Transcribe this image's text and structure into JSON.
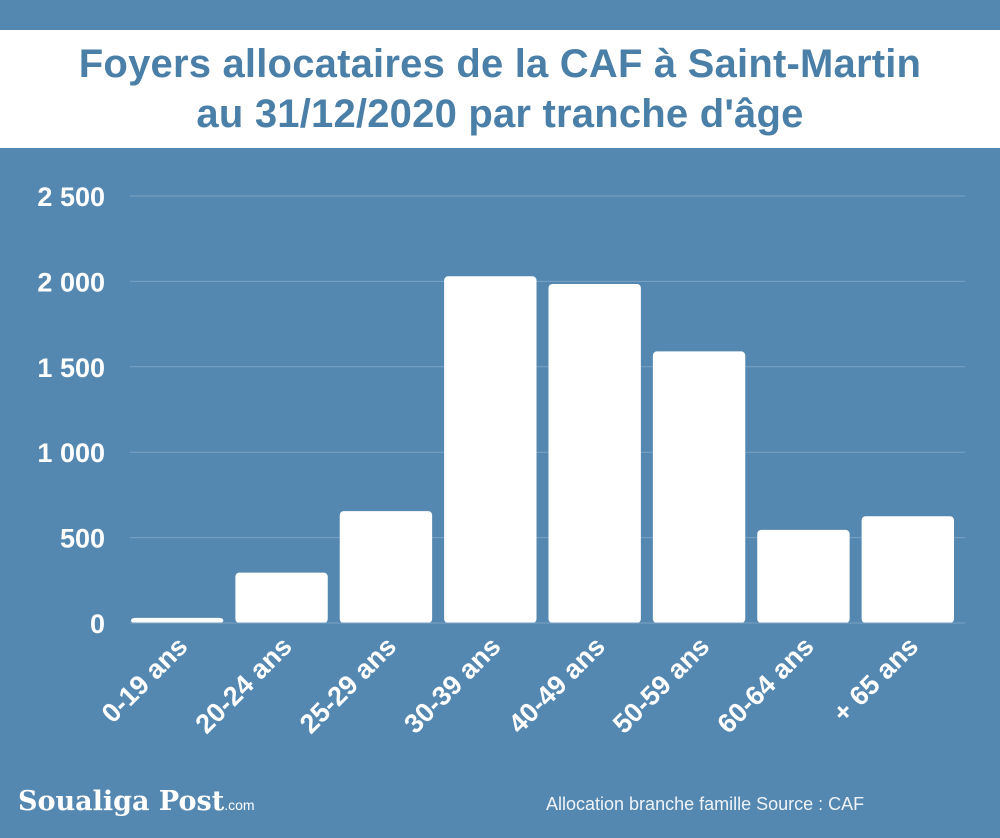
{
  "header": {
    "title_line1": "Foyers allocataires de la CAF à Saint-Martin",
    "title_line2": "au 31/12/2020 par tranche d'âge"
  },
  "footer": {
    "logo_main": "Soualiga Post",
    "logo_suffix": ".com",
    "source": "Allocation branche famille Source : CAF"
  },
  "colors": {
    "background": "#5588b0",
    "bar": "#ffffff",
    "title": "#4a7fa7",
    "grid": "#7aa2c4"
  },
  "chart_data": {
    "type": "bar",
    "categories": [
      "0-19 ans",
      "20-24 ans",
      "25-29 ans",
      "30-39 ans",
      "40-49 ans",
      "50-59 ans",
      "60-64 ans",
      "+ 65 ans"
    ],
    "values": [
      30,
      295,
      655,
      2030,
      1985,
      1590,
      545,
      625
    ],
    "yticks": [
      "0",
      "500",
      "1 000",
      "1 500",
      "2 000",
      "2 500"
    ],
    "ylim": [
      0,
      2500
    ],
    "grid": true,
    "legend": "none"
  }
}
